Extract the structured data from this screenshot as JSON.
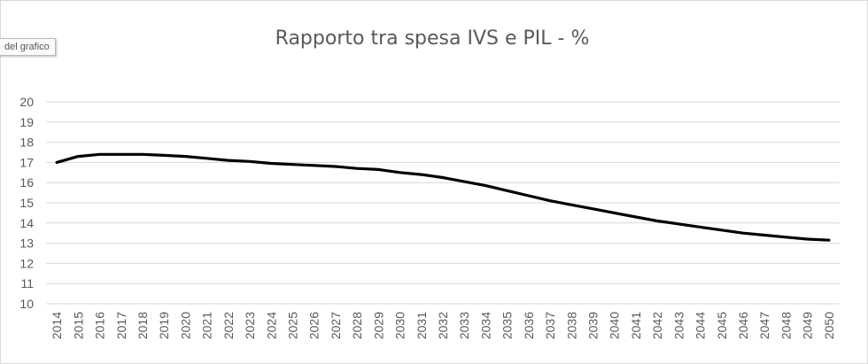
{
  "tooltip": {
    "label": "del grafico"
  },
  "chart_data": {
    "type": "line",
    "title": "Rapporto tra spesa IVS e PIL - %",
    "xlabel": "",
    "ylabel": "",
    "ylim": [
      10,
      20
    ],
    "yticks": [
      "10",
      "11",
      "12",
      "13",
      "14",
      "15",
      "16",
      "17",
      "18",
      "19",
      "20"
    ],
    "grid": true,
    "legend": "none",
    "line_color": "#000000",
    "categories": [
      "2014",
      "2015",
      "2016",
      "2017",
      "2018",
      "2019",
      "2020",
      "2021",
      "2022",
      "2023",
      "2024",
      "2025",
      "2026",
      "2027",
      "2028",
      "2029",
      "2030",
      "2031",
      "2032",
      "2033",
      "2034",
      "2035",
      "2036",
      "2037",
      "2038",
      "2039",
      "2040",
      "2041",
      "2042",
      "2043",
      "2044",
      "2045",
      "2046",
      "2047",
      "2048",
      "2049",
      "2050"
    ],
    "series": [
      {
        "values": [
          17.0,
          17.3,
          17.4,
          17.4,
          17.4,
          17.35,
          17.3,
          17.2,
          17.1,
          17.05,
          16.95,
          16.9,
          16.85,
          16.8,
          16.7,
          16.65,
          16.5,
          16.4,
          16.25,
          16.05,
          15.85,
          15.6,
          15.35,
          15.1,
          14.9,
          14.7,
          14.5,
          14.3,
          14.1,
          13.95,
          13.8,
          13.65,
          13.5,
          13.4,
          13.3,
          13.2,
          13.15
        ]
      }
    ]
  }
}
